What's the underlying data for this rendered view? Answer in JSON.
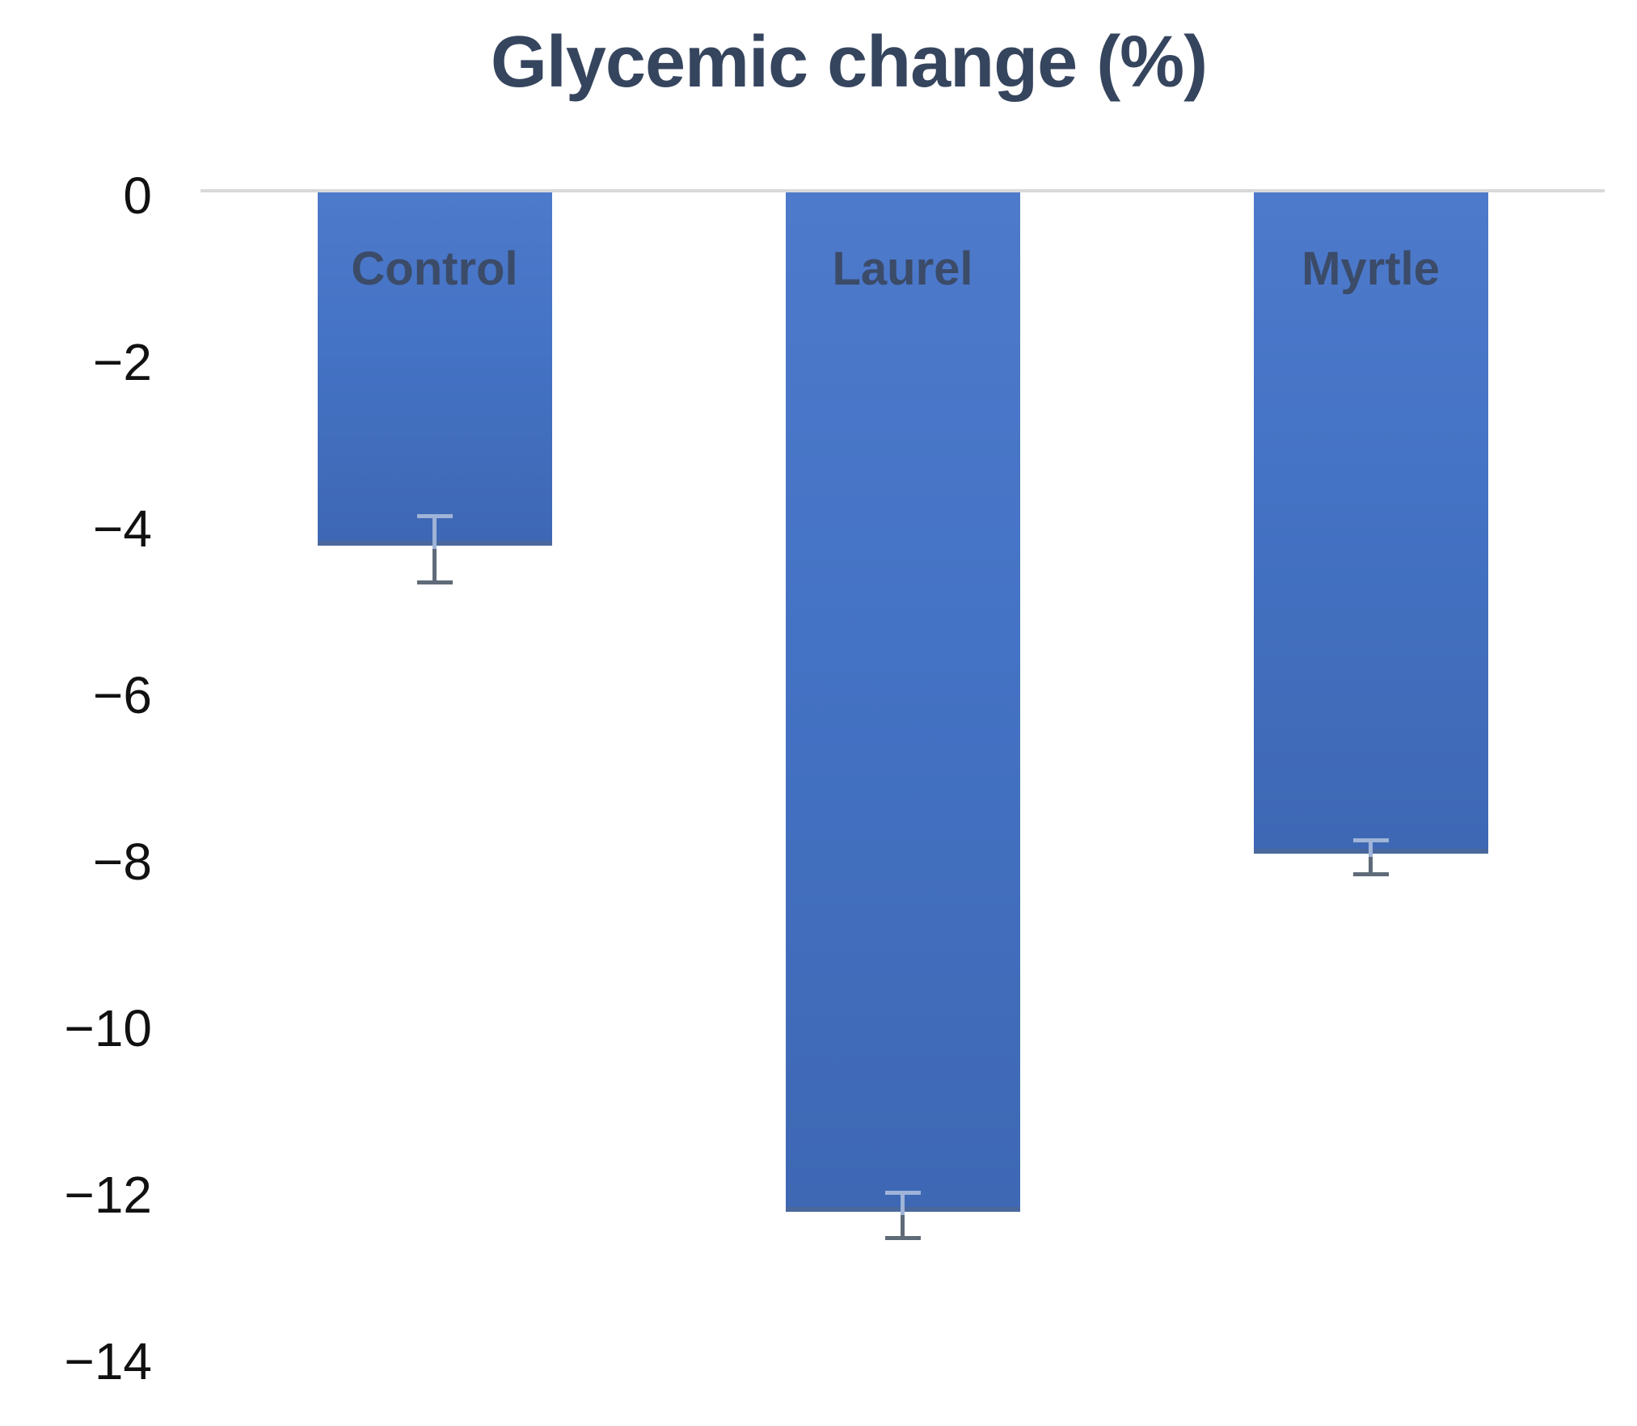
{
  "chart_data": {
    "type": "bar",
    "title": "Glycemic change (%)",
    "categories": [
      "Control",
      "Laurel",
      "Myrtle"
    ],
    "values": [
      -4.3,
      -12.3,
      -8.0
    ],
    "error_bars": [
      0.4,
      0.27,
      0.2
    ],
    "bar_labels_position": "inside-top",
    "xlabel": "",
    "ylabel": "",
    "ylim": [
      -14,
      0
    ],
    "yticks": [
      0,
      -2,
      -4,
      -6,
      -8,
      -10,
      -12,
      -14
    ],
    "ytick_labels": [
      "0",
      "−2",
      "−4",
      "−6",
      "−8",
      "−10",
      "−12",
      "−14"
    ],
    "legend": "none",
    "grid": "zero-line-only",
    "colors": {
      "background": "#ffffff",
      "bar_top": "#4e7acb",
      "bar_mid": "#4472c4",
      "bar_bottom": "#3e68b4",
      "bar_bottom_edge": "#4a689c",
      "title_text": "#36455e",
      "bar_label_text": "#3b4b68",
      "tick_text": "#111111",
      "zero_line": "#d9d9d9",
      "error_bar_inside": "#9fb4d8",
      "error_bar_outside": "#5f6b78"
    }
  }
}
